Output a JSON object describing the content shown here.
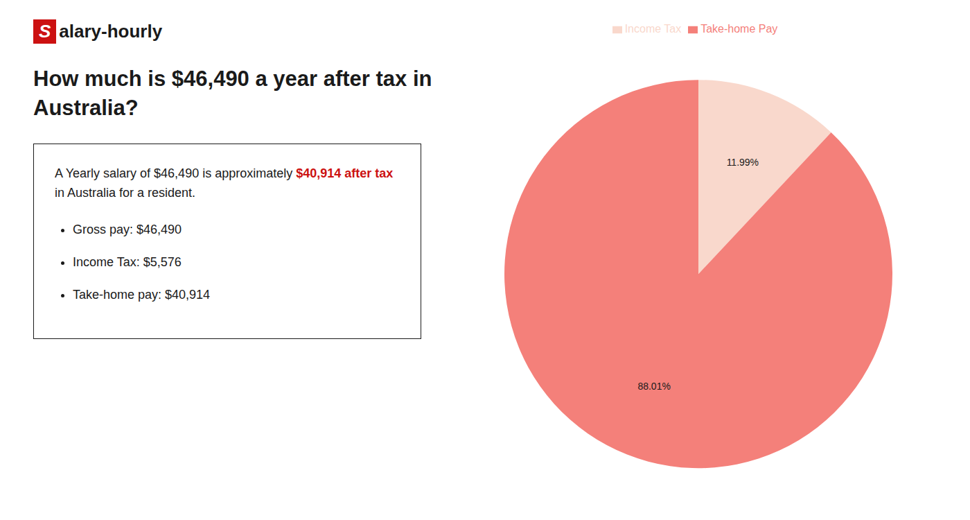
{
  "chart_data": {
    "type": "pie",
    "title": "How much is $46,490 a year after tax in Australia?",
    "categories": [
      "Income Tax",
      "Take-home Pay"
    ],
    "values": [
      11.99,
      88.01
    ],
    "value_labels": [
      "11.99%",
      "88.01%"
    ],
    "colors": [
      "#f9d8cc",
      "#f4807a"
    ],
    "data_labels": true,
    "legend": "top",
    "annotations": [
      [
        {
          "text": "S",
          "color": "#cc1111"
        },
        {
          "text": "alary-hourly"
        }
      ],
      [
        {
          "text": "A Yearly salary of $46,490 is approximately "
        },
        {
          "text": "$40,914 after tax",
          "color": "#cc1111"
        },
        {
          "text": " in Australia for a resident."
        }
      ],
      "Gross pay: $46,490",
      "Income Tax: $5,576",
      "Take-home pay: $40,914"
    ]
  }
}
